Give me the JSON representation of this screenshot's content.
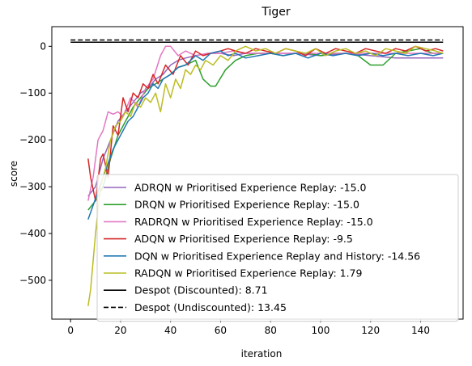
{
  "chart_data": {
    "type": "line",
    "title": "Tiger",
    "xlabel": "iteration",
    "ylabel": "score",
    "xlim": [
      -7.5,
      157
    ],
    "ylim": [
      -583,
      42
    ],
    "xticks": [
      0,
      20,
      40,
      60,
      80,
      100,
      120,
      140
    ],
    "yticks": [
      0,
      -100,
      -200,
      -300,
      -400,
      -500
    ],
    "grid": false,
    "legend_placement": "lower-right",
    "series": [
      {
        "name": "ADRQN w Prioritised Experience Replay: -15.0",
        "color": "#9467bd",
        "style": "solid",
        "x": [
          7,
          10,
          13,
          16,
          19,
          22,
          25,
          28,
          31,
          34,
          37,
          40,
          43,
          46,
          50,
          55,
          60,
          65,
          70,
          80,
          90,
          100,
          110,
          120,
          130,
          140,
          149
        ],
        "y": [
          -320,
          -300,
          -240,
          -200,
          -160,
          -140,
          -120,
          -100,
          -90,
          -70,
          -60,
          -40,
          -30,
          -25,
          -20,
          -15,
          -15,
          -20,
          -15,
          -15,
          -15,
          -20,
          -15,
          -20,
          -25,
          -25,
          -25
        ]
      },
      {
        "name": "DRQN w Prioritised Experience Replay: -15.0",
        "color": "#2ca02c",
        "style": "solid",
        "x": [
          7,
          10,
          13,
          16,
          19,
          22,
          25,
          28,
          31,
          34,
          37,
          40,
          43,
          46,
          50,
          53,
          56,
          58,
          62,
          66,
          70,
          75,
          80,
          85,
          90,
          95,
          100,
          105,
          110,
          115,
          120,
          125,
          130,
          135,
          140,
          145,
          149
        ],
        "y": [
          -350,
          -330,
          -300,
          -240,
          -190,
          -160,
          -130,
          -110,
          -90,
          -80,
          -70,
          -60,
          -45,
          -40,
          -30,
          -70,
          -85,
          -85,
          -50,
          -30,
          -20,
          -15,
          -15,
          -20,
          -15,
          -15,
          -20,
          -15,
          -15,
          -20,
          -40,
          -40,
          -15,
          -10,
          -5,
          -15,
          -15
        ]
      },
      {
        "name": "RADRQN w Prioritised Experience Replay: -15.0",
        "color": "#e377c2",
        "style": "solid",
        "x": [
          7,
          9,
          11,
          13,
          15,
          17,
          19,
          21,
          24,
          27,
          30,
          33,
          36,
          38,
          40,
          43,
          46,
          50,
          55,
          60,
          65,
          70,
          80,
          90,
          100,
          110,
          120,
          130,
          140,
          149
        ],
        "y": [
          -330,
          -280,
          -200,
          -180,
          -140,
          -145,
          -140,
          -150,
          -110,
          -130,
          -90,
          -70,
          -20,
          0,
          0,
          -20,
          -10,
          -20,
          -15,
          -15,
          -10,
          -15,
          -15,
          -15,
          -15,
          -15,
          -15,
          -15,
          -15,
          -15
        ]
      },
      {
        "name": "ADQN w Prioritised Experience Replay: -9.5",
        "color": "#d62728",
        "style": "solid",
        "x": [
          7,
          8,
          10,
          12,
          13,
          15,
          17,
          19,
          21,
          23,
          25,
          27,
          29,
          31,
          33,
          35,
          38,
          41,
          44,
          47,
          50,
          53,
          56,
          60,
          63,
          66,
          70,
          74,
          78,
          82,
          86,
          90,
          94,
          98,
          102,
          106,
          110,
          114,
          118,
          122,
          126,
          130,
          134,
          138,
          142,
          146,
          149
        ],
        "y": [
          -240,
          -280,
          -330,
          -240,
          -230,
          -280,
          -170,
          -190,
          -110,
          -140,
          -100,
          -110,
          -80,
          -90,
          -60,
          -80,
          -40,
          -60,
          -20,
          -40,
          -10,
          -20,
          -15,
          -10,
          -5,
          -10,
          -15,
          -5,
          -10,
          -15,
          -5,
          -10,
          -20,
          -5,
          -15,
          -5,
          -10,
          -15,
          -5,
          -10,
          -15,
          -5,
          -10,
          0,
          -10,
          -5,
          -10
        ]
      },
      {
        "name": "DQN w Prioritised Experience Replay and History: -14.56",
        "color": "#1f77b4",
        "style": "solid",
        "x": [
          7,
          9,
          11,
          13,
          15,
          17,
          19,
          21,
          23,
          25,
          27,
          29,
          31,
          33,
          35,
          37,
          40,
          43,
          46,
          50,
          53,
          56,
          60,
          63,
          66,
          70,
          75,
          80,
          85,
          90,
          95,
          100,
          105,
          110,
          115,
          120,
          125,
          130,
          135,
          140,
          145,
          149
        ],
        "y": [
          -370,
          -340,
          -310,
          -280,
          -250,
          -220,
          -200,
          -180,
          -160,
          -150,
          -130,
          -110,
          -100,
          -80,
          -90,
          -70,
          -60,
          -45,
          -40,
          -20,
          -30,
          -15,
          -10,
          -20,
          -15,
          -25,
          -20,
          -15,
          -20,
          -15,
          -25,
          -15,
          -20,
          -15,
          -20,
          -15,
          -20,
          -15,
          -20,
          -15,
          -20,
          -15
        ]
      },
      {
        "name": "RADQN w Prioritised Experience Replay: 1.79",
        "color": "#bcbd22",
        "style": "solid",
        "x": [
          7,
          8,
          10,
          12,
          14,
          16,
          18,
          20,
          22,
          24,
          26,
          28,
          30,
          32,
          34,
          36,
          38,
          40,
          42,
          44,
          46,
          48,
          50,
          52,
          54,
          57,
          60,
          63,
          66,
          70,
          74,
          78,
          82,
          86,
          90,
          94,
          98,
          102,
          106,
          110,
          114,
          118,
          122,
          126,
          130,
          134,
          138,
          142,
          146,
          149
        ],
        "y": [
          -555,
          -520,
          -400,
          -300,
          -260,
          -200,
          -170,
          -160,
          -140,
          -150,
          -120,
          -130,
          -110,
          -120,
          -100,
          -140,
          -80,
          -110,
          -70,
          -90,
          -50,
          -60,
          -40,
          -50,
          -30,
          -40,
          -20,
          -30,
          -10,
          0,
          -10,
          -5,
          -15,
          -5,
          -10,
          -15,
          -5,
          -20,
          -10,
          -5,
          -15,
          -10,
          -20,
          -5,
          -10,
          -15,
          0,
          -5,
          -10,
          -15
        ]
      },
      {
        "name": "Despot (Discounted): 8.71",
        "color": "#000000",
        "style": "solid",
        "x": [
          0,
          149
        ],
        "y": [
          8.71,
          8.71
        ]
      },
      {
        "name": "Despot (Undiscounted): 13.45",
        "color": "#000000",
        "style": "dashed",
        "x": [
          0,
          149
        ],
        "y": [
          13.45,
          13.45
        ]
      }
    ]
  }
}
